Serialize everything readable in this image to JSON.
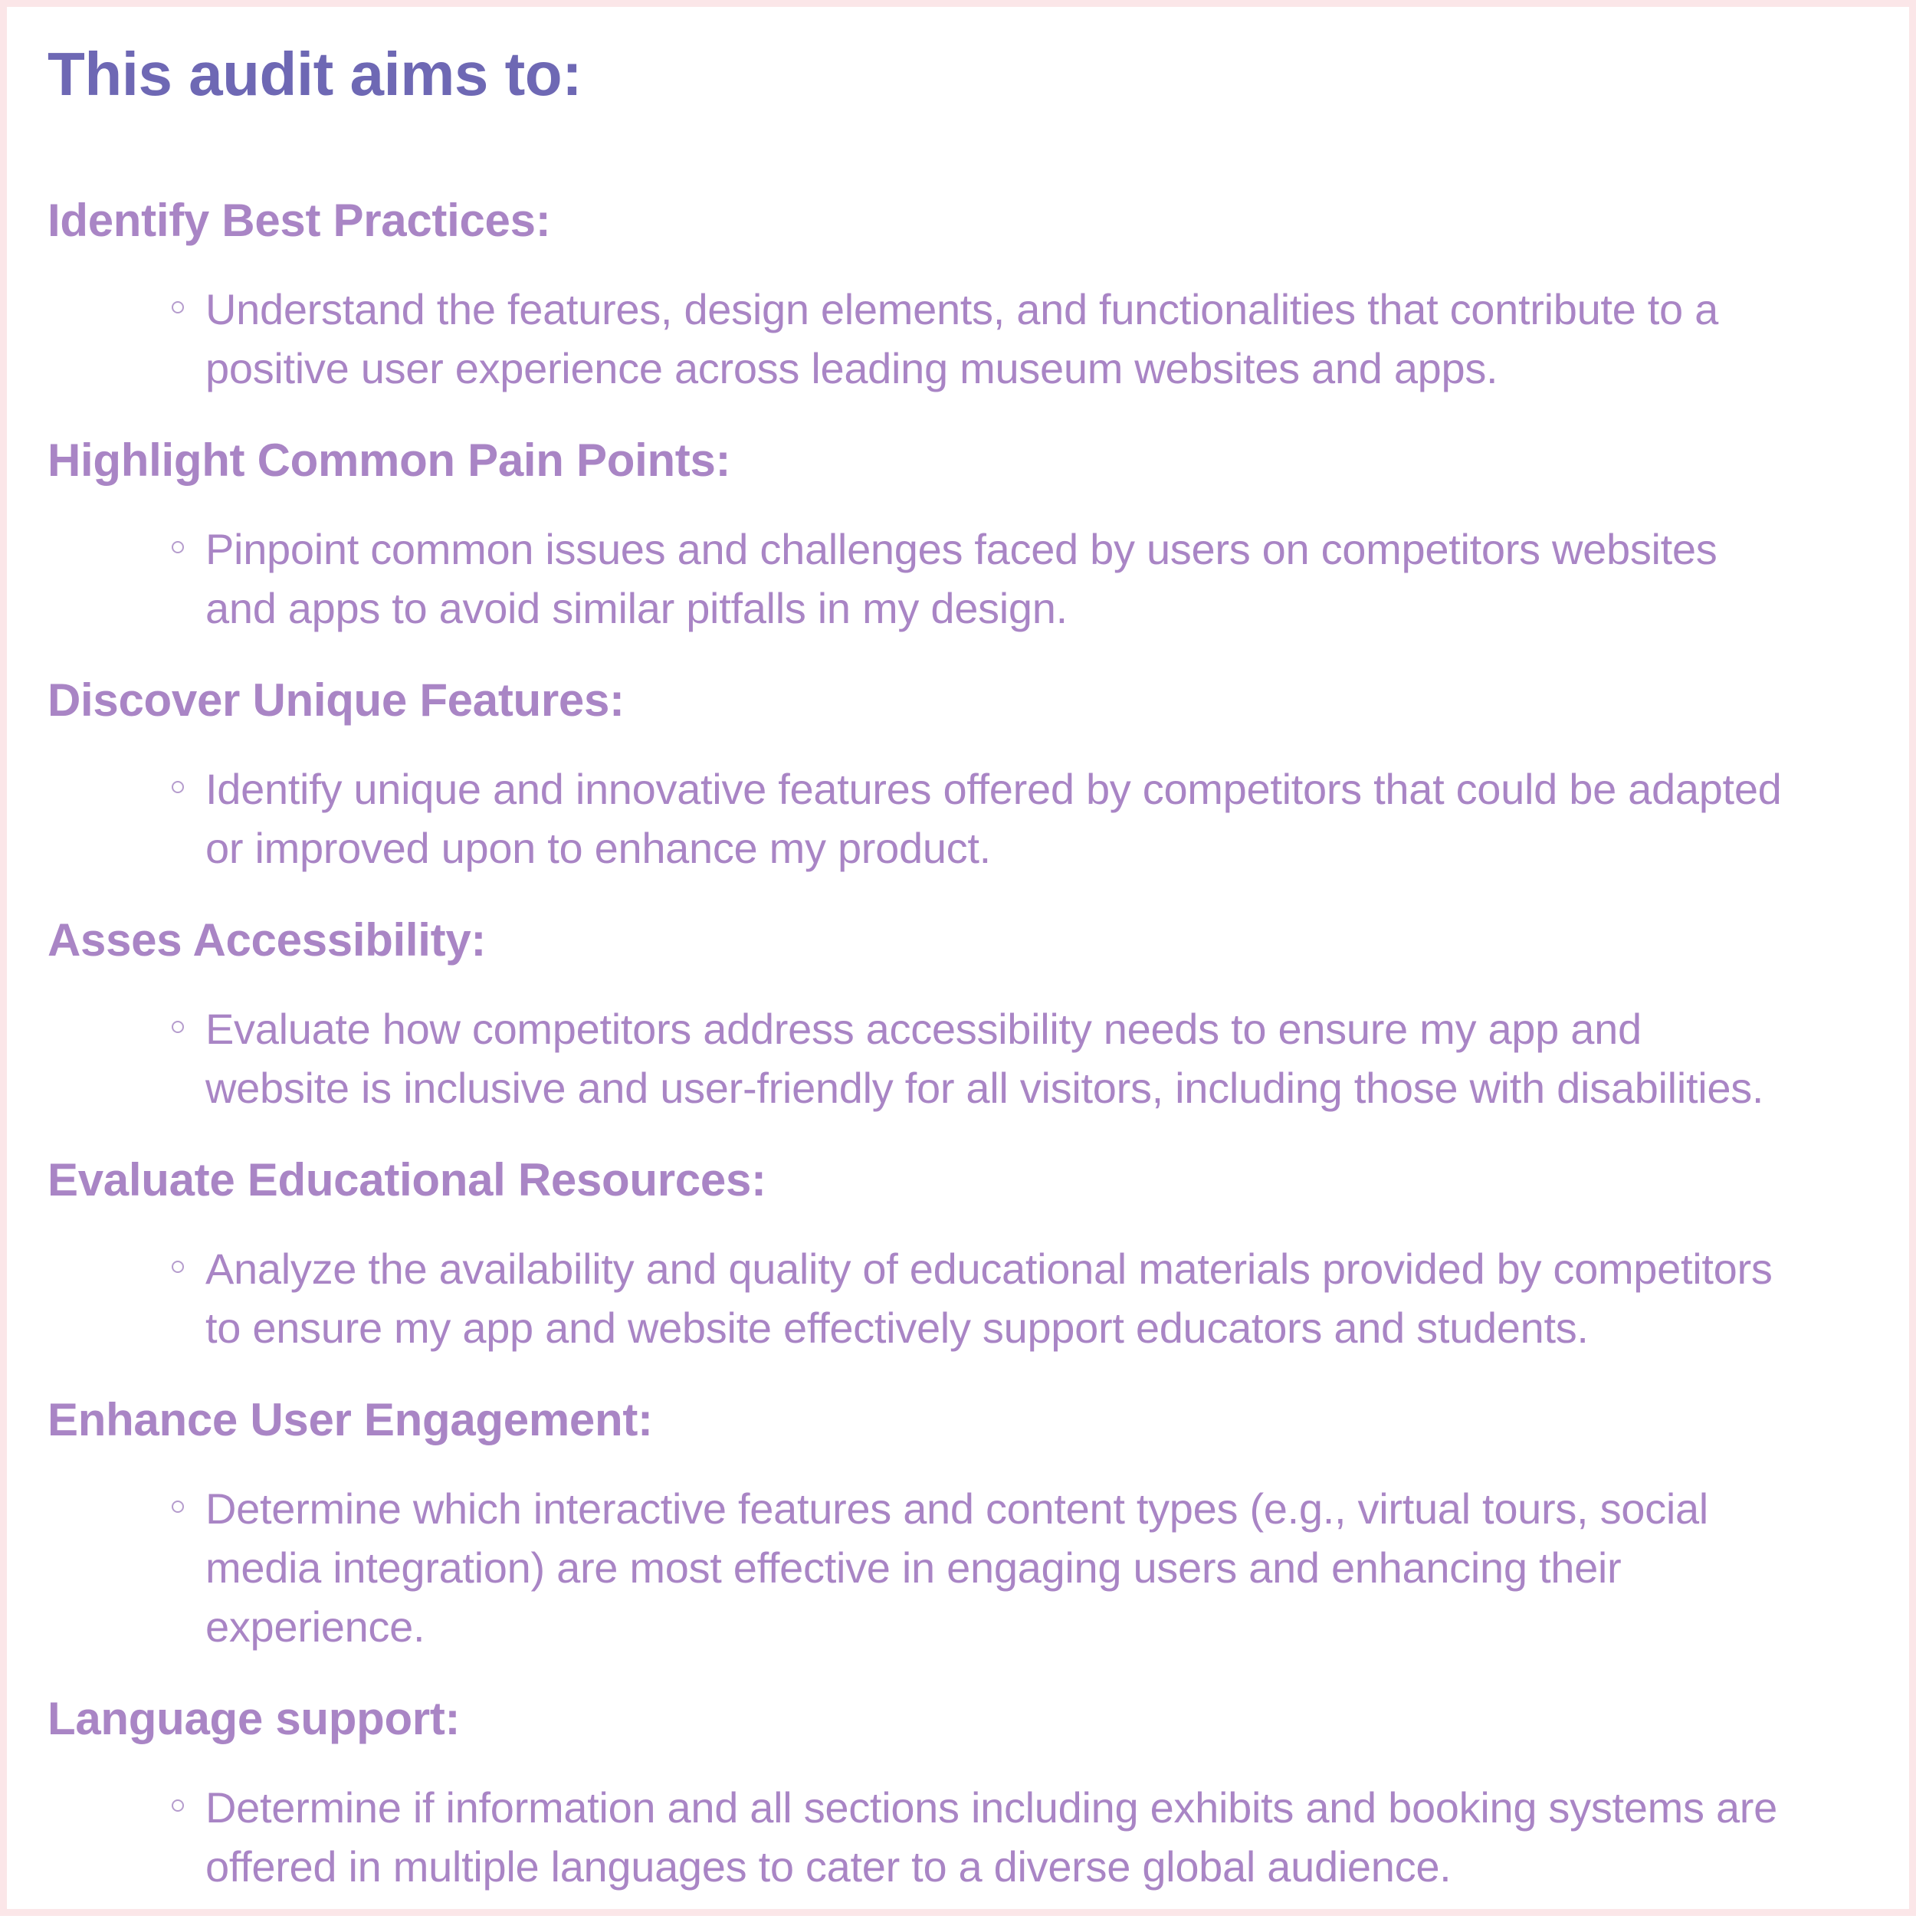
{
  "page": {
    "title": "This audit aims to:"
  },
  "colors": {
    "title": "#6e68b4",
    "text": "#a985c5",
    "border": "#fbe6e8"
  },
  "sections": [
    {
      "heading": "Identify Best Practices:",
      "bullet": "Understand the features, design elements, and functionalities that contribute to a positive user experience across leading museum websites and apps."
    },
    {
      "heading": "Highlight Common Pain Points:",
      "bullet": "Pinpoint common issues and challenges faced by users on competitors websites and apps to avoid similar pitfalls in my design."
    },
    {
      "heading": "Discover Unique Features:",
      "bullet": "Identify unique and innovative features offered by competitors that could be adapted or improved upon to enhance my product."
    },
    {
      "heading": "Asses Accessibility:",
      "bullet": "Evaluate how competitors address accessibility needs to ensure my app and website is inclusive and user-friendly for all visitors, including those with disabilities."
    },
    {
      "heading": "Evaluate Educational Resources:",
      "bullet": "Analyze the availability and quality of educational materials provided by competitors to ensure my app and website effectively support educators and students."
    },
    {
      "heading": "Enhance User Engagement:",
      "bullet": "Determine which interactive features and content types (e.g., virtual tours, social media integration) are most effective in engaging users and enhancing their experience."
    },
    {
      "heading": "Language support:",
      "bullet": "Determine if information and all sections including exhibits and booking systems are offered in multiple languages to cater to a diverse global audience."
    }
  ]
}
